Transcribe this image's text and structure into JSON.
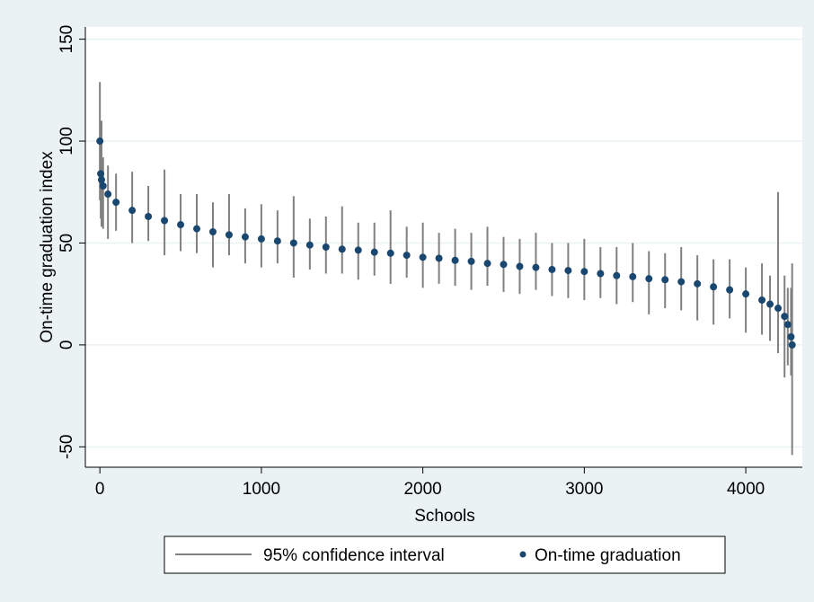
{
  "chart_data": {
    "type": "caterpillar",
    "xlabel": "Schools",
    "ylabel": "On-time graduation index",
    "xlim": [
      -90,
      4350
    ],
    "ylim": [
      -60,
      156
    ],
    "xticks": [
      0,
      1000,
      2000,
      3000,
      4000
    ],
    "yticks": [
      -50,
      0,
      50,
      100,
      150
    ],
    "grid": true,
    "x": [
      0,
      5,
      10,
      20,
      50,
      100,
      200,
      300,
      400,
      500,
      600,
      700,
      800,
      900,
      1000,
      1100,
      1200,
      1300,
      1400,
      1500,
      1600,
      1700,
      1800,
      1900,
      2000,
      2100,
      2200,
      2300,
      2400,
      2500,
      2600,
      2700,
      2800,
      2900,
      3000,
      3100,
      3200,
      3300,
      3400,
      3500,
      3600,
      3700,
      3800,
      3900,
      4000,
      4100,
      4150,
      4200,
      4240,
      4260,
      4280,
      4287
    ],
    "interval": {
      "name": "95% confidence interval",
      "color": "#808080",
      "lower": [
        71,
        62,
        58,
        57,
        52,
        56,
        50,
        51,
        44,
        46,
        45,
        38,
        44,
        40,
        38,
        40,
        33,
        37,
        35,
        35,
        32,
        34,
        30,
        33,
        28,
        30,
        29,
        27,
        29,
        26,
        25,
        27,
        24,
        23,
        22,
        23,
        20,
        21,
        15,
        18,
        17,
        12,
        10,
        13,
        6,
        5,
        2,
        -4,
        -16,
        -10,
        -15,
        -54
      ],
      "upper": [
        129,
        101,
        110,
        92,
        88,
        84,
        85,
        78,
        86,
        74,
        74,
        70,
        74,
        67,
        69,
        66,
        73,
        62,
        63,
        68,
        60,
        60,
        66,
        58,
        60,
        55,
        57,
        55,
        58,
        53,
        52,
        55,
        50,
        50,
        52,
        48,
        48,
        50,
        46,
        45,
        48,
        44,
        42,
        42,
        38,
        40,
        34,
        75,
        34,
        28,
        28,
        40
      ]
    },
    "series": [
      {
        "name": "On-time graduation",
        "color": "#1a476f",
        "values": [
          100,
          84,
          81,
          78,
          74,
          70,
          66,
          63,
          61,
          59,
          57,
          55.5,
          54,
          53,
          52,
          51,
          50,
          49,
          48,
          47,
          46.5,
          45.5,
          45,
          44,
          43,
          42.5,
          41.5,
          41,
          40,
          39.5,
          38.5,
          38,
          37,
          36.5,
          36,
          35,
          34,
          33.5,
          32.5,
          32,
          31,
          30,
          28.5,
          27,
          25,
          22,
          20,
          18,
          14,
          10,
          4,
          0
        ]
      }
    ]
  }
}
